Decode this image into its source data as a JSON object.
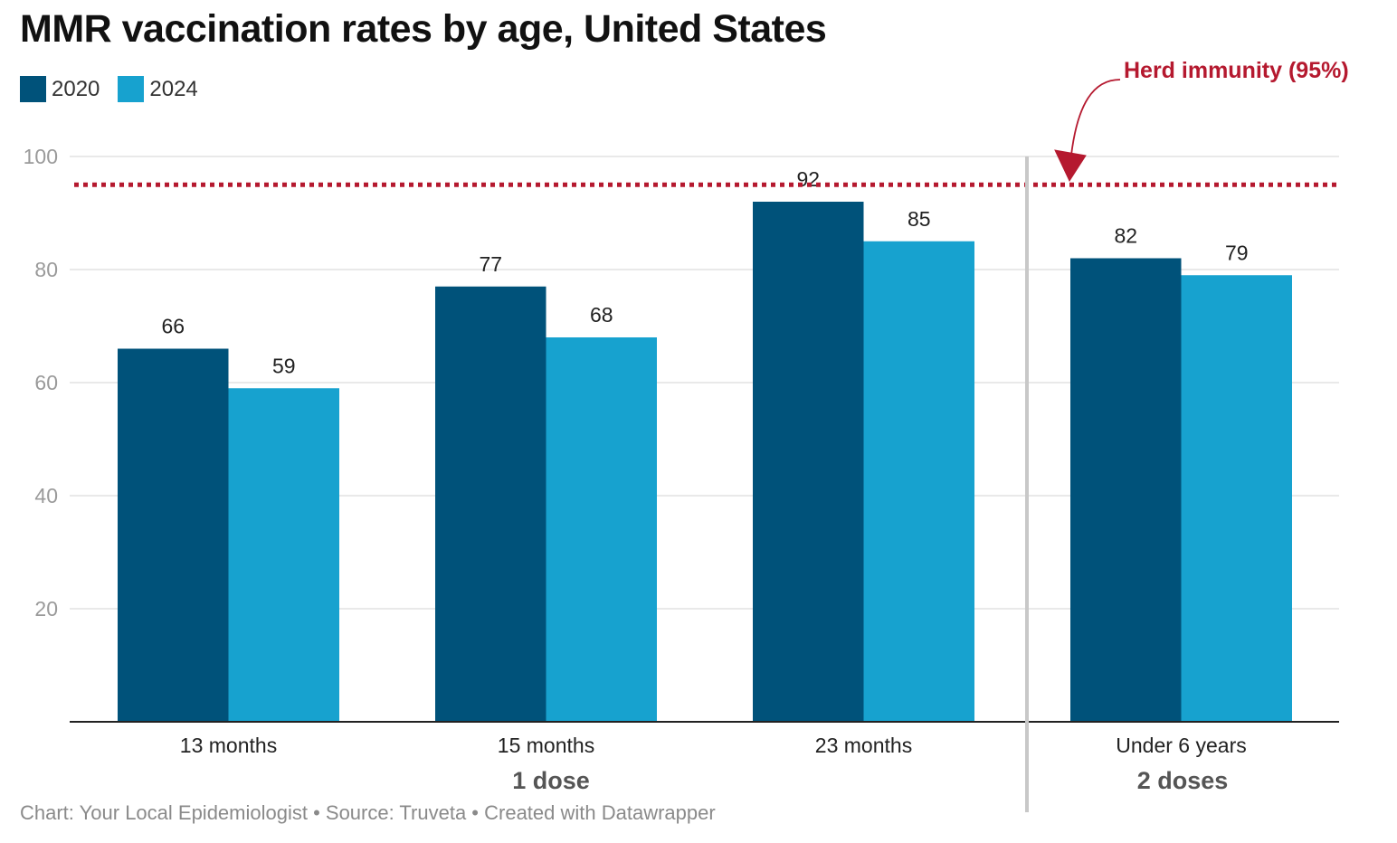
{
  "colors": {
    "series_2020": "#00527a",
    "series_2024": "#17a2cf",
    "threshold": "#b5192f",
    "axis": "#222222",
    "grid": "#e2e2e2",
    "divider": "#c8c8c8"
  },
  "footer": "Chart: Your Local Epidemiologist • Source: Truveta • Created with Datawrapper",
  "chart_data": {
    "type": "bar",
    "title": "MMR vaccination rates by age, United States",
    "categories": [
      "13 months",
      "15 months",
      "23 months",
      "Under 6 years"
    ],
    "series": [
      {
        "name": "2020",
        "values": [
          66,
          77,
          92,
          82
        ]
      },
      {
        "name": "2024",
        "values": [
          59,
          68,
          85,
          79
        ]
      }
    ],
    "groups": [
      {
        "label": "1 dose",
        "categories": [
          "13 months",
          "15 months",
          "23 months"
        ]
      },
      {
        "label": "2 doses",
        "categories": [
          "Under 6 years"
        ]
      }
    ],
    "ylim": [
      0,
      100
    ],
    "yticks": [
      20,
      40,
      60,
      80,
      100
    ],
    "grid": true,
    "legend": "top-left",
    "threshold": {
      "value": 95,
      "label": "Herd immunity (95%)"
    },
    "xlabel": "",
    "ylabel": ""
  }
}
